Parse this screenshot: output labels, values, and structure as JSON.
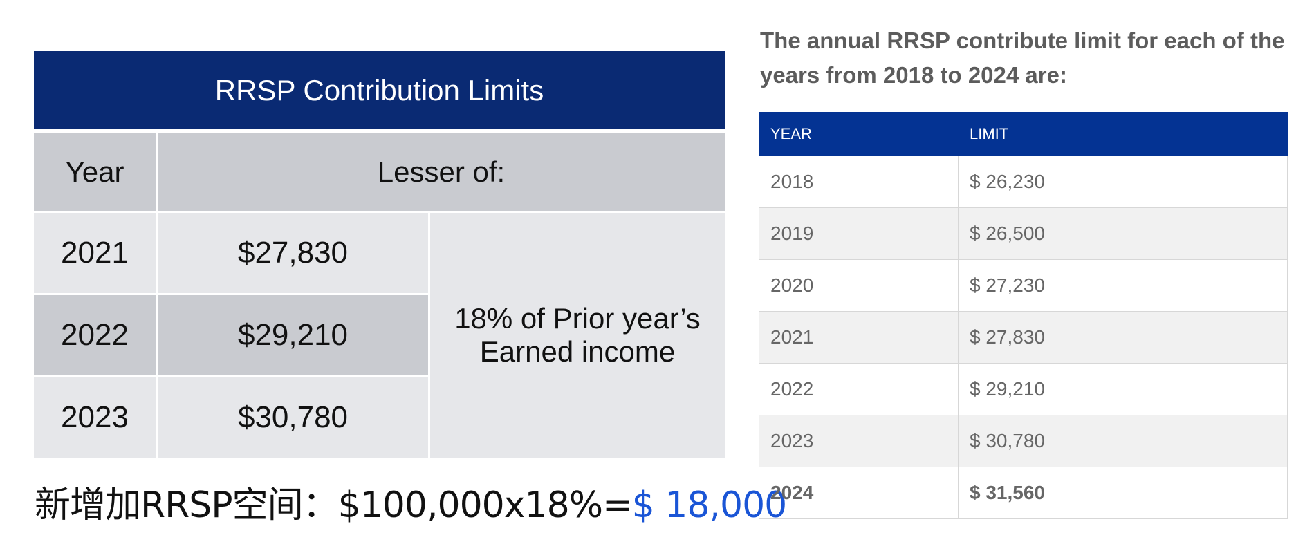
{
  "left_table": {
    "title": "RRSP Contribution Limits",
    "header_year": "Year",
    "header_lesser": "Lesser of:",
    "rows": [
      {
        "year": "2021",
        "amount": "$27,830"
      },
      {
        "year": "2022",
        "amount": "$29,210"
      },
      {
        "year": "2023",
        "amount": "$30,780"
      }
    ],
    "note_line1": "18% of Prior year’s",
    "note_line2": "Earned income"
  },
  "formula": {
    "text": "新增加RRSP空间：$100,000x18%=",
    "result": "$ 18,000",
    "result_color": "#1a55d6"
  },
  "right": {
    "heading": "The annual RRSP contribute limit for each of the years from 2018 to 2024 are:",
    "header_year": "YEAR",
    "header_limit": "LIMIT",
    "header_color": "#043393",
    "rows": [
      {
        "year": "2018",
        "limit": "$ 26,230"
      },
      {
        "year": "2019",
        "limit": "$ 26,500"
      },
      {
        "year": "2020",
        "limit": "$ 27,230"
      },
      {
        "year": "2021",
        "limit": "$ 27,830"
      },
      {
        "year": "2022",
        "limit": "$ 29,210"
      },
      {
        "year": "2023",
        "limit": "$ 30,780"
      },
      {
        "year": "2024",
        "limit": "$ 31,560"
      }
    ]
  }
}
